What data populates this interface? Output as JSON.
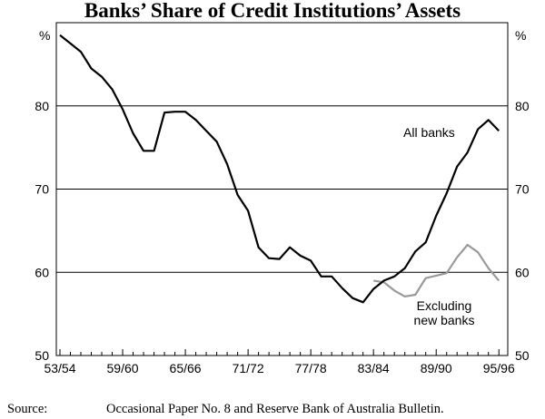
{
  "chart_data": {
    "type": "line",
    "title": "Banks’ Share of Credit Institutions’ Assets",
    "y_unit_left": "%",
    "y_unit_right": "%",
    "ylim": [
      50,
      90
    ],
    "yticks": [
      50,
      60,
      70,
      80
    ],
    "x_tick_labels": [
      "53/54",
      "59/60",
      "65/66",
      "71/72",
      "77/78",
      "83/84",
      "89/90",
      "95/96"
    ],
    "grid": true,
    "series": [
      {
        "name": "All banks",
        "color": "#000000",
        "x": [
          1953,
          1954,
          1955,
          1956,
          1957,
          1958,
          1959,
          1960,
          1961,
          1962,
          1963,
          1964,
          1965,
          1966,
          1967,
          1968,
          1969,
          1970,
          1971,
          1972,
          1973,
          1974,
          1975,
          1976,
          1977,
          1978,
          1979,
          1980,
          1981,
          1982,
          1983,
          1984,
          1985,
          1986,
          1987,
          1988,
          1989,
          1990,
          1991,
          1992,
          1993,
          1994,
          1995
        ],
        "values": [
          88.5,
          87.5,
          86.5,
          84.5,
          83.5,
          82.0,
          79.6,
          76.7,
          74.6,
          74.6,
          79.2,
          79.3,
          79.3,
          78.3,
          77.0,
          75.7,
          73.0,
          69.3,
          67.4,
          63.0,
          61.7,
          61.6,
          63.0,
          62.0,
          61.4,
          59.5,
          59.5,
          58.1,
          56.9,
          56.4,
          58.0,
          59.0,
          59.5,
          60.5,
          62.5,
          63.6,
          66.8,
          69.5,
          72.7,
          74.4,
          77.2,
          78.3,
          77.0
        ]
      },
      {
        "name": "Excluding new banks",
        "color": "#999999",
        "x": [
          1983,
          1984,
          1985,
          1986,
          1987,
          1988,
          1989,
          1990,
          1991,
          1992,
          1993,
          1994,
          1995
        ],
        "values": [
          59.0,
          58.8,
          57.8,
          57.1,
          57.3,
          59.3,
          59.6,
          59.9,
          61.8,
          63.3,
          62.4,
          60.5,
          59.0
        ]
      }
    ],
    "annotations": [
      {
        "text": "All banks"
      },
      {
        "text": "Excluding\nnew banks"
      }
    ],
    "source_label": "Source:",
    "source_text": "Occasional Paper No. 8 and Reserve Bank of Australia Bulletin."
  }
}
